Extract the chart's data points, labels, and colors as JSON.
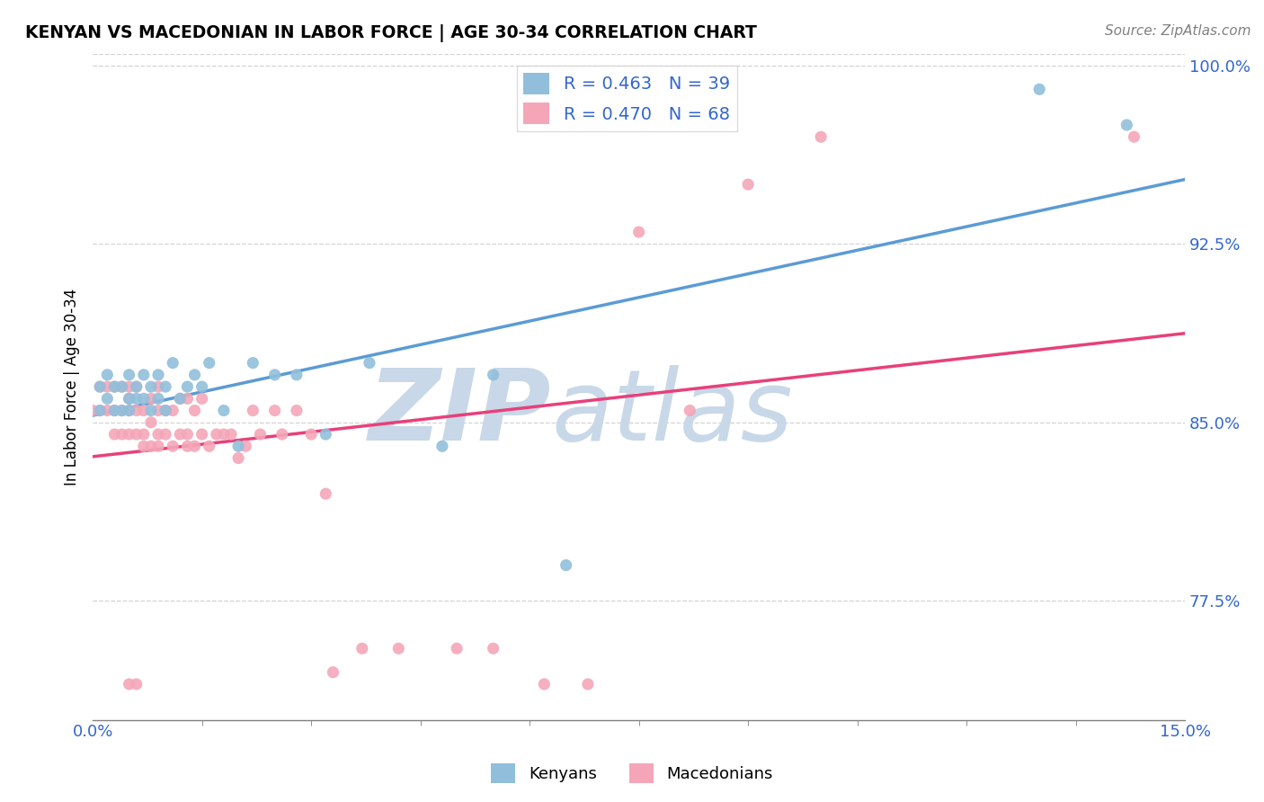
{
  "title": "KENYAN VS MACEDONIAN IN LABOR FORCE | AGE 30-34 CORRELATION CHART",
  "source": "Source: ZipAtlas.com",
  "ylabel": "In Labor Force | Age 30-34",
  "xlim": [
    0.0,
    0.15
  ],
  "ylim": [
    0.725,
    1.005
  ],
  "xticks": [
    0.0,
    0.15
  ],
  "xticklabels": [
    "0.0%",
    "15.0%"
  ],
  "yticks": [
    0.775,
    0.85,
    0.925,
    1.0
  ],
  "yticklabels": [
    "77.5%",
    "85.0%",
    "92.5%",
    "100.0%"
  ],
  "kenyan_R": 0.463,
  "kenyan_N": 39,
  "macedonian_R": 0.47,
  "macedonian_N": 68,
  "kenyan_color": "#91bfdb",
  "macedonian_color": "#f4a6b8",
  "kenyan_line_color": "#5b9bd5",
  "macedonian_line_color": "#e8407a",
  "watermark_zip": "ZIP",
  "watermark_atlas": "atlas",
  "watermark_color": "#c8d8e8",
  "kenyan_x": [
    0.001,
    0.001,
    0.002,
    0.002,
    0.003,
    0.003,
    0.004,
    0.004,
    0.005,
    0.005,
    0.005,
    0.006,
    0.006,
    0.007,
    0.007,
    0.008,
    0.008,
    0.009,
    0.009,
    0.01,
    0.01,
    0.011,
    0.012,
    0.013,
    0.014,
    0.015,
    0.016,
    0.018,
    0.02,
    0.022,
    0.025,
    0.028,
    0.032,
    0.038,
    0.048,
    0.055,
    0.065,
    0.13,
    0.142
  ],
  "kenyan_y": [
    0.855,
    0.865,
    0.86,
    0.87,
    0.855,
    0.865,
    0.855,
    0.865,
    0.855,
    0.86,
    0.87,
    0.86,
    0.865,
    0.86,
    0.87,
    0.855,
    0.865,
    0.86,
    0.87,
    0.855,
    0.865,
    0.875,
    0.86,
    0.865,
    0.87,
    0.865,
    0.875,
    0.855,
    0.84,
    0.875,
    0.87,
    0.87,
    0.845,
    0.875,
    0.84,
    0.87,
    0.79,
    0.99,
    0.975
  ],
  "macedonian_x": [
    0.0,
    0.001,
    0.001,
    0.002,
    0.002,
    0.003,
    0.003,
    0.003,
    0.004,
    0.004,
    0.004,
    0.005,
    0.005,
    0.005,
    0.005,
    0.005,
    0.006,
    0.006,
    0.006,
    0.006,
    0.007,
    0.007,
    0.007,
    0.008,
    0.008,
    0.008,
    0.009,
    0.009,
    0.009,
    0.009,
    0.01,
    0.01,
    0.011,
    0.011,
    0.012,
    0.012,
    0.013,
    0.013,
    0.013,
    0.014,
    0.014,
    0.015,
    0.015,
    0.016,
    0.017,
    0.018,
    0.019,
    0.02,
    0.021,
    0.022,
    0.023,
    0.025,
    0.026,
    0.028,
    0.03,
    0.032,
    0.033,
    0.037,
    0.042,
    0.05,
    0.055,
    0.062,
    0.068,
    0.075,
    0.082,
    0.09,
    0.1,
    0.143
  ],
  "macedonian_y": [
    0.855,
    0.855,
    0.865,
    0.855,
    0.865,
    0.845,
    0.855,
    0.865,
    0.845,
    0.855,
    0.865,
    0.74,
    0.845,
    0.855,
    0.86,
    0.865,
    0.74,
    0.845,
    0.855,
    0.865,
    0.84,
    0.845,
    0.855,
    0.84,
    0.85,
    0.86,
    0.84,
    0.845,
    0.855,
    0.865,
    0.845,
    0.855,
    0.84,
    0.855,
    0.845,
    0.86,
    0.84,
    0.845,
    0.86,
    0.84,
    0.855,
    0.845,
    0.86,
    0.84,
    0.845,
    0.845,
    0.845,
    0.835,
    0.84,
    0.855,
    0.845,
    0.855,
    0.845,
    0.855,
    0.845,
    0.82,
    0.745,
    0.755,
    0.755,
    0.755,
    0.755,
    0.74,
    0.74,
    0.93,
    0.855,
    0.95,
    0.97,
    0.97
  ]
}
